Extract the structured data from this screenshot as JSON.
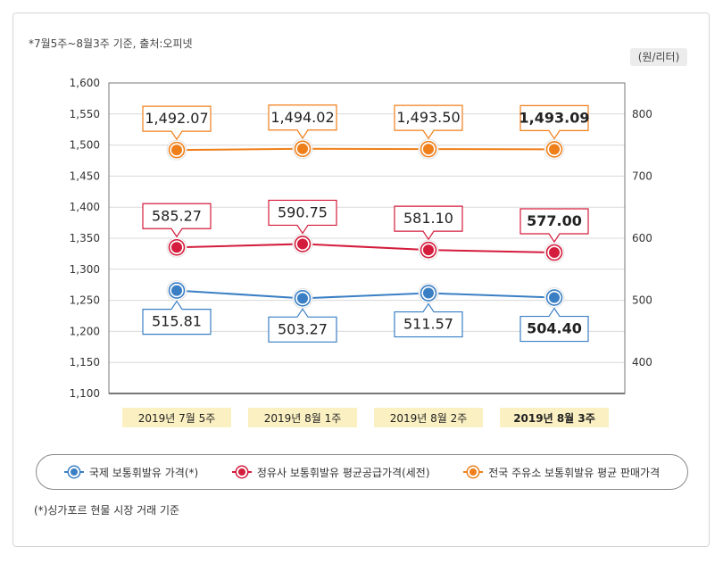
{
  "notes": {
    "top": "*7월5주~8월3주 기준, 출처:오피넷",
    "unit": "(원/리터)",
    "bottom": "(*)싱가포르 현물 시장 거래 기준"
  },
  "chart_data": {
    "type": "line",
    "categories": [
      "2019년 7월 5주",
      "2019년 8월 1주",
      "2019년 8월 2주",
      "2019년 8월 3주"
    ],
    "y_left": {
      "min": 1100,
      "max": 1600,
      "step": 50,
      "ticks": [
        "1,100",
        "1,150",
        "1,200",
        "1,250",
        "1,300",
        "1,350",
        "1,400",
        "1,450",
        "1,500",
        "1,550",
        "1,600"
      ]
    },
    "y_right": {
      "min": 350,
      "max": 850,
      "ticks": [
        {
          "value": 400,
          "label": "400"
        },
        {
          "value": 500,
          "label": "500"
        },
        {
          "value": 600,
          "label": "600"
        },
        {
          "value": 700,
          "label": "700"
        },
        {
          "value": 800,
          "label": "800"
        }
      ]
    },
    "grid": true,
    "legend_position": "bottom",
    "series": [
      {
        "name": "국제 보통휘발유 가격(*)",
        "axis": "right",
        "color": "#3a7fc4",
        "label_position": "below",
        "values": [
          515.81,
          503.27,
          511.57,
          504.4
        ],
        "labels": [
          "515.81",
          "503.27",
          "511.57",
          "504.40"
        ]
      },
      {
        "name": "정유사 보통휘발유 평균공급가격(세전)",
        "axis": "right",
        "color": "#d41c3c",
        "label_position": "above",
        "values": [
          585.27,
          590.75,
          581.1,
          577.0
        ],
        "labels": [
          "585.27",
          "590.75",
          "581.10",
          "577.00"
        ]
      },
      {
        "name": "전국 주유소 보통휘발유 평균 판매가격",
        "axis": "left",
        "color": "#ef7f1a",
        "label_position": "above",
        "values": [
          1492.07,
          1494.02,
          1493.5,
          1493.09
        ],
        "labels": [
          "1,492.07",
          "1,494.02",
          "1,493.50",
          "1,493.09"
        ]
      }
    ]
  }
}
